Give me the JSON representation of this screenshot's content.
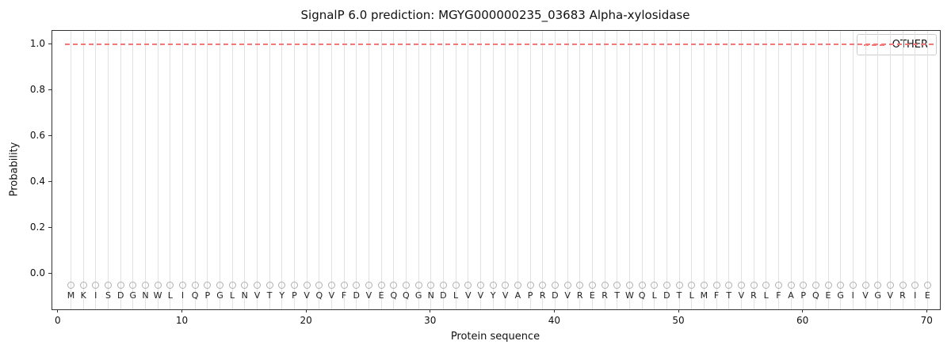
{
  "chart_data": {
    "type": "line",
    "title": "SignalP 6.0 prediction: MGYG000000235_03683 Alpha-xylosidase",
    "xlabel": "Protein sequence",
    "ylabel": "Probability",
    "xlim": [
      -0.5,
      71.0
    ],
    "ylim": [
      -0.155,
      1.06
    ],
    "grid": "vertical-per-residue",
    "grid_color": "#e2e2e2",
    "legend_position": "upper right",
    "n_residues": 70,
    "sequence": "MKISDGNWLIQPGLNVTYPVQVFDVEQQGNDLVVYVAPRDVRERTWQLDTLMFTVRLFAPQEGIVGVRIE",
    "x_ticks": [
      {
        "value": 0,
        "label": "0"
      },
      {
        "value": 10,
        "label": "10"
      },
      {
        "value": 20,
        "label": "20"
      },
      {
        "value": 30,
        "label": "30"
      },
      {
        "value": 40,
        "label": "40"
      },
      {
        "value": 50,
        "label": "50"
      },
      {
        "value": 60,
        "label": "60"
      },
      {
        "value": 70,
        "label": "70"
      }
    ],
    "y_ticks": [
      {
        "value": 0.0,
        "label": "0.0"
      },
      {
        "value": 0.2,
        "label": "0.2"
      },
      {
        "value": 0.4,
        "label": "0.4"
      },
      {
        "value": 0.6,
        "label": "0.6"
      },
      {
        "value": 0.8,
        "label": "0.8"
      },
      {
        "value": 1.0,
        "label": "1.0"
      }
    ],
    "series": [
      {
        "name": "OTHER",
        "type": "line",
        "style": "dashed",
        "color": "#ee7a7a",
        "x_range": [
          1,
          70
        ],
        "y_constant": 1.0
      }
    ],
    "residue_markers": {
      "symbol": "open-circle",
      "y": -0.05,
      "color": "#b0b0b0"
    },
    "letter_row_y": -0.095
  }
}
